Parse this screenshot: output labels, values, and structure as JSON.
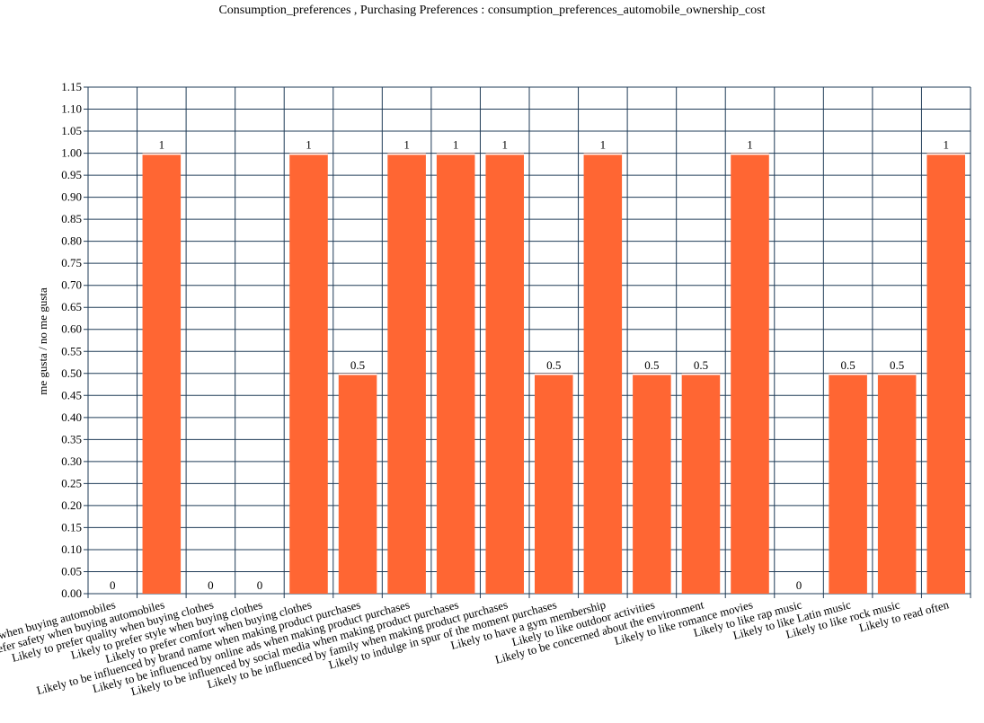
{
  "chart_data": {
    "type": "bar",
    "title": "Consumption_preferences , Purchasing Preferences : consumption_preferences_automobile_ownership_cost",
    "xlabel": "",
    "ylabel": "me gusta / no me gusta",
    "ylim": [
      0,
      1.15
    ],
    "ytick_step": 0.05,
    "grid": true,
    "legend": "none",
    "bar_color": "#ff6633",
    "gridline_color": "#1f3b57",
    "categories": [
      "Likely to prefer safety when buying automobiles",
      "Likely to prefer safety when buying automobiles",
      "Likely to prefer quality when buying clothes",
      "Likely to prefer style when buying clothes",
      "Likely to prefer comfort when buying clothes",
      "Likely to be influenced by brand name when making product purchases",
      "Likely to be influenced by online ads when making product purchases",
      "Likely to be influenced by social media when making product purchases",
      "Likely to be influenced by family when making product purchases",
      "Likely to indulge in spur of the moment purchases",
      "Likely to have a gym membership",
      "Likely to like outdoor activities",
      "Likely to be concerned about the environment",
      "Likely to like romance movies",
      "Likely to like rap music",
      "Likely to like Latin music",
      "Likely to like rock music",
      "Likely to read often"
    ],
    "values": [
      0,
      1,
      0,
      0,
      1,
      0.5,
      1,
      1,
      1,
      0.5,
      1,
      0.5,
      0.5,
      1,
      0,
      0.5,
      0.5,
      1
    ]
  }
}
